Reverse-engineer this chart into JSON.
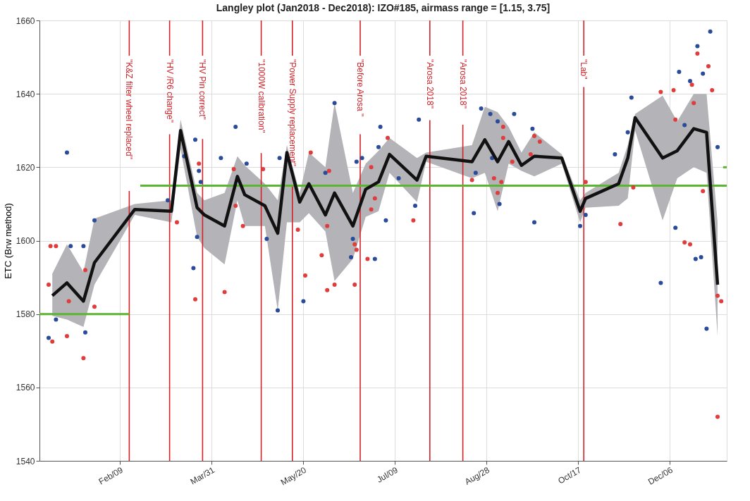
{
  "chart_data": {
    "type": "line",
    "title": "Langley plot (Jan2018 - Dec2018): IZO#185, airmass range = [1.15, 3.75]",
    "ylabel": "ETC (Brw method)",
    "xlim": [
      "2017-12-27",
      "2019-01-06"
    ],
    "ylim": [
      1540,
      1660
    ],
    "xticks": [
      {
        "value": "2018-02-09",
        "label": "Feb/09"
      },
      {
        "value": "2018-03-31",
        "label": "Mar/31"
      },
      {
        "value": "2018-05-20",
        "label": "May/20"
      },
      {
        "value": "2018-07-09",
        "label": "Jul/09"
      },
      {
        "value": "2018-08-28",
        "label": "Aug/28"
      },
      {
        "value": "2018-10-17",
        "label": "Oct/17"
      },
      {
        "value": "2018-12-06",
        "label": "Dec/06"
      }
    ],
    "yticks": [
      1540,
      1560,
      1580,
      1600,
      1620,
      1640,
      1660
    ],
    "grid": true,
    "series": [
      {
        "color": "#5cb531",
        "x": [
          "2017-12-27",
          "2018-02-14",
          "2018-02-17",
          "2018-02-20",
          "2019-01-06"
        ],
        "values": [
          1580,
          1580,
          null,
          1615,
          1615
        ]
      },
      {
        "color": "#5cb531",
        "x": [
          "2019-01-04",
          "2019-01-06"
        ],
        "values": [
          1620,
          1620
        ]
      },
      {
        "type": "scatter",
        "color": "#e03c3c",
        "x": [
          "2018-01-02",
          "2018-01-05",
          "2018-01-01",
          "2018-01-03",
          "2018-01-11",
          "2018-01-12",
          "2018-01-21",
          "2018-01-20",
          "2018-01-26",
          "2018-03-12",
          "2018-03-24",
          "2018-03-22",
          "2018-04-07",
          "2018-04-13",
          "2018-04-12",
          "2018-04-17",
          "2018-04-28",
          "2018-05-17",
          "2018-05-21",
          "2018-05-24",
          "2018-05-30",
          "2018-06-02",
          "2018-06-02",
          "2018-06-03",
          "2018-06-06",
          "2018-06-17",
          "2018-06-18",
          "2018-06-17",
          "2018-06-26",
          "2018-06-26",
          "2018-06-24",
          "2018-07-05",
          "2018-06-28",
          "2018-07-19",
          "2018-08-20",
          "2018-09-06",
          "2018-09-06",
          "2018-09-01",
          "2018-09-03",
          "2018-09-05",
          "2018-09-11",
          "2018-09-21",
          "2018-09-23",
          "2018-09-26",
          "2018-10-21",
          "2018-11-09",
          "2018-11-16",
          "2018-12-01",
          "2018-12-08",
          "2018-12-09",
          "2018-12-18",
          "2018-12-21",
          "2018-12-27",
          "2018-12-29",
          "2018-12-19",
          "2018-12-14",
          "2018-12-17",
          "2018-12-24",
          "2019-01-03",
          "2019-01-01",
          "2019-01-01"
        ],
        "values": [
          1598.5,
          1598.5,
          1588,
          1572.5,
          1574,
          1583.5,
          1592,
          1568,
          1582,
          1605,
          1621,
          1584,
          1586,
          1609.5,
          1619.5,
          1604,
          1619.5,
          1603,
          1590.5,
          1624,
          1596,
          1604,
          1586.5,
          1619,
          1588,
          1599,
          1597.5,
          1588,
          1620,
          1608.5,
          1595,
          1628,
          1611.5,
          1605.5,
          1616.5,
          1631,
          1628,
          1617,
          1613,
          1616,
          1621.5,
          1623.5,
          1628.5,
          1627,
          1616,
          1604.5,
          1614.5,
          1640.5,
          1641,
          1633,
          1642.5,
          1651,
          1647.5,
          1641,
          1637.5,
          1599.5,
          1599,
          1613.5,
          1583.5,
          1585,
          1552
        ]
      },
      {
        "type": "scatter",
        "color": "#2a4a9a",
        "x": [
          "2018-01-01",
          "2018-01-05",
          "2018-01-11",
          "2018-01-13",
          "2018-01-20",
          "2018-01-21",
          "2018-01-26",
          "2018-03-07",
          "2018-03-16",
          "2018-03-22",
          "2018-03-24",
          "2018-03-25",
          "2018-03-23",
          "2018-03-21",
          "2018-04-05",
          "2018-04-13",
          "2018-04-19",
          "2018-04-30",
          "2018-05-07",
          "2018-05-06",
          "2018-05-20",
          "2018-06-01",
          "2018-06-06",
          "2018-06-16",
          "2018-06-15",
          "2018-06-18",
          "2018-06-21",
          "2018-06-28",
          "2018-07-01",
          "2018-06-30",
          "2018-07-04",
          "2018-07-11",
          "2018-07-22",
          "2018-07-20",
          "2018-08-21",
          "2018-08-22",
          "2018-08-25",
          "2018-08-30",
          "2018-09-03",
          "2018-08-31",
          "2018-09-04",
          "2018-09-12",
          "2018-09-22",
          "2018-09-23",
          "2018-10-18",
          "2018-10-21",
          "2018-11-06",
          "2018-11-15",
          "2018-11-13",
          "2018-12-01",
          "2018-12-09",
          "2018-12-11",
          "2018-12-17",
          "2018-12-21",
          "2018-12-28",
          "2018-12-24",
          "2018-12-14",
          "2018-12-20",
          "2018-12-23",
          "2018-12-26",
          "2019-01-01"
        ],
        "values": [
          1573.5,
          1578.5,
          1624,
          1598.5,
          1598.5,
          1575,
          1605.5,
          1611,
          1623,
          1627.5,
          1619,
          1616,
          1601,
          1592.5,
          1622.5,
          1631,
          1621,
          1600.5,
          1622.5,
          1581,
          1583.5,
          1618.5,
          1637.5,
          1600.5,
          1595.5,
          1621.5,
          1622.5,
          1595,
          1631,
          1625.5,
          1605.5,
          1617,
          1633,
          1609.5,
          1607.5,
          1618.5,
          1636,
          1634.5,
          1632.5,
          1622.5,
          1610,
          1634.5,
          1630.5,
          1605,
          1604,
          1607,
          1623.5,
          1639,
          1629.5,
          1588.5,
          1603.5,
          1646,
          1643.5,
          1653,
          1657,
          1645.5,
          1631.5,
          1595,
          1595.5,
          1576,
          1625.5
        ]
      },
      {
        "color": "#111111",
        "x": [
          "2018-01-03",
          "2018-01-11",
          "2018-01-20",
          "2018-01-26",
          "2018-02-17",
          "2018-03-09",
          "2018-03-14",
          "2018-03-23",
          "2018-03-27",
          "2018-04-07",
          "2018-04-14",
          "2018-04-18",
          "2018-04-29",
          "2018-05-06",
          "2018-05-11",
          "2018-05-18",
          "2018-05-23",
          "2018-06-01",
          "2018-06-06",
          "2018-06-16",
          "2018-06-23",
          "2018-06-30",
          "2018-07-06",
          "2018-07-21",
          "2018-07-26",
          "2018-08-20",
          "2018-08-27",
          "2018-09-03",
          "2018-09-09",
          "2018-09-16",
          "2018-09-23",
          "2018-10-08",
          "2018-10-18",
          "2018-10-21",
          "2018-11-08",
          "2018-11-13",
          "2018-11-17",
          "2018-12-02",
          "2018-12-10",
          "2018-12-19",
          "2018-12-26",
          "2019-01-01"
        ],
        "values": [
          1585,
          1588.5,
          1583.5,
          1594,
          1608.5,
          1608,
          1630,
          1609,
          1607,
          1604,
          1617.5,
          1612.5,
          1609.5,
          1602,
          1624,
          1610.5,
          1615.5,
          1607,
          1613,
          1604,
          1614,
          1616,
          1623.5,
          1616.5,
          1623,
          1621.5,
          1627.5,
          1621.5,
          1627,
          1620.5,
          1623,
          1622.5,
          1608,
          1611.5,
          1615.5,
          1622.5,
          1633.5,
          1622.5,
          1624.5,
          1630.5,
          1629.5,
          1588
        ],
        "lower": [
          1579.5,
          1578.5,
          1576.5,
          1588,
          1607,
          1605,
          1625,
          1601,
          1598,
          1593.5,
          1611,
          1604,
          1604,
          1581,
          1605,
          1605,
          1607.5,
          1602.5,
          1589,
          1595,
          1606.5,
          1608,
          1618.5,
          1610.5,
          1621.5,
          1617,
          1618.5,
          1608,
          1621,
          1619,
          1617.5,
          1621,
          1605,
          1609,
          1609.5,
          1611.5,
          1630,
          1605.5,
          1617,
          1620,
          1618.5,
          1574
        ],
        "upper": [
          1591,
          1599,
          1591.5,
          1606,
          1610,
          1611,
          1633,
          1613,
          1611,
          1613,
          1623,
          1620.5,
          1615.5,
          1611,
          1626,
          1613,
          1624,
          1620,
          1637.5,
          1613,
          1621,
          1624.5,
          1628,
          1622.5,
          1624,
          1626,
          1636.5,
          1635,
          1631,
          1624,
          1629.5,
          1623.5,
          1611,
          1613,
          1618.5,
          1626,
          1634.5,
          1639.5,
          1632.5,
          1640,
          1640,
          1605
        ]
      }
    ],
    "ref_lines": [
      {
        "axis": "x",
        "value": "2018-02-14",
        "label": "\"K&Z filter wheel replaced\"",
        "color": "#d3222a"
      },
      {
        "axis": "x",
        "value": "2018-03-08",
        "label": "\"HV /R6 change\"",
        "color": "#d3222a"
      },
      {
        "axis": "x",
        "value": "2018-03-26",
        "label": "\"HV Pin correct\"",
        "color": "#d3222a"
      },
      {
        "axis": "x",
        "value": "2018-04-27",
        "label": "\"1000W calibration\"",
        "color": "#d3222a"
      },
      {
        "axis": "x",
        "value": "2018-05-14",
        "label": "\"Power Supply replacement\"",
        "color": "#d3222a"
      },
      {
        "axis": "x",
        "value": "2018-06-20",
        "label": "\"Before Arosa \"",
        "color": "#d3222a"
      },
      {
        "axis": "x",
        "value": "2018-07-28",
        "label": "\"Arosa 2018\"",
        "color": "#d3222a"
      },
      {
        "axis": "x",
        "value": "2018-08-15",
        "label": "\"Arosa  2018\"",
        "color": "#d3222a"
      },
      {
        "axis": "x",
        "value": "2018-10-20",
        "label": "\"Lab\"",
        "color": "#d3222a"
      }
    ]
  }
}
